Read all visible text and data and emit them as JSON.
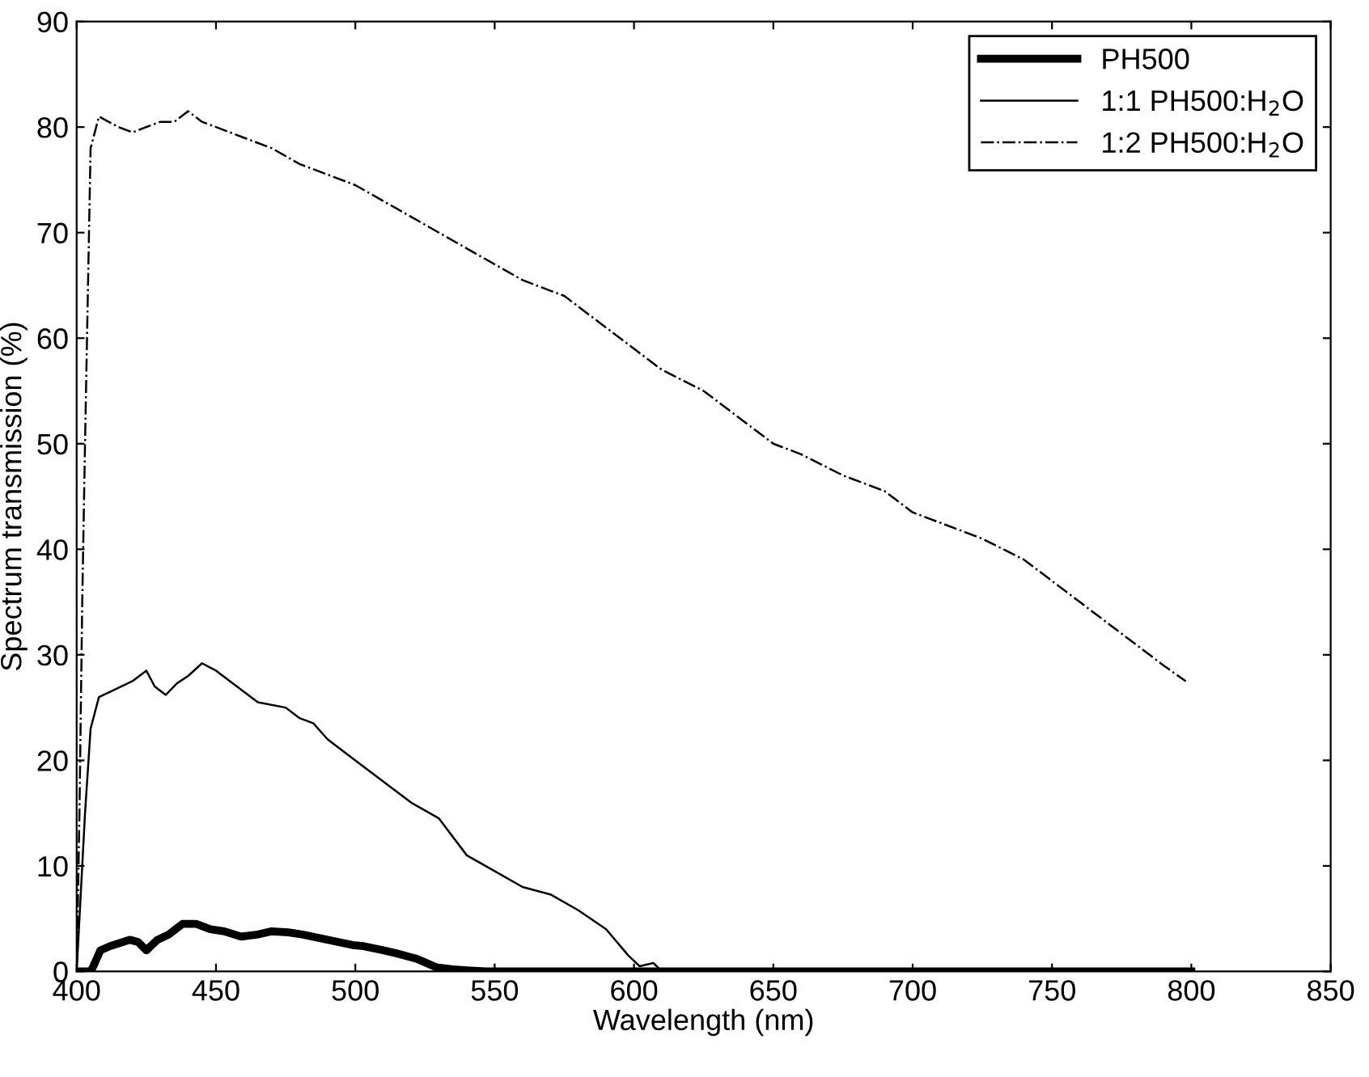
{
  "chart_data": {
    "type": "line",
    "xlabel": "Wavelength (nm)",
    "ylabel": "Spectrum transmission (%)",
    "xlim": [
      400,
      850
    ],
    "ylim": [
      0,
      90
    ],
    "xticks": [
      400,
      450,
      500,
      550,
      600,
      650,
      700,
      750,
      800,
      850
    ],
    "yticks": [
      0,
      10,
      20,
      30,
      40,
      50,
      60,
      70,
      80,
      90
    ],
    "grid": false,
    "legend": "top right",
    "series": [
      {
        "name": "PH500",
        "color": "#000000",
        "line_style": "solid",
        "x": [
          400,
          405,
          406,
          408.5,
          412,
          419,
          422,
          425,
          429,
          433,
          438,
          443,
          448,
          453,
          459,
          465,
          470,
          476,
          481,
          490,
          499,
          503,
          510,
          515,
          522,
          529,
          535,
          540,
          547,
          600,
          700,
          800
        ],
        "values": [
          0,
          0,
          0.5,
          2,
          2.4,
          3,
          2.8,
          2,
          3,
          3.5,
          4.5,
          4.5,
          4,
          3.8,
          3.3,
          3.5,
          3.8,
          3.7,
          3.5,
          3,
          2.5,
          2.4,
          2,
          1.7,
          1.2,
          0.4,
          0.2,
          0.1,
          0,
          0,
          0,
          0
        ]
      },
      {
        "name": "1:1 PH500:H$_{2}$O",
        "color": "#000000",
        "line_style": "solid",
        "x": [
          400,
          403,
          405,
          408,
          412,
          420,
          425,
          428,
          432,
          436,
          440,
          445,
          450,
          455,
          465,
          475,
          480,
          485,
          490,
          500,
          510,
          520,
          530,
          540,
          550,
          560,
          570,
          580,
          590,
          598,
          602,
          607,
          610,
          650,
          700,
          800
        ],
        "values": [
          0,
          15,
          23,
          26,
          26.5,
          27.5,
          28.5,
          27,
          26.2,
          27.3,
          28,
          29.2,
          28.5,
          27.5,
          25.5,
          25,
          24,
          23.5,
          22,
          20,
          18,
          16,
          14.5,
          11,
          9.5,
          8,
          7.3,
          5.8,
          4,
          1.5,
          0.5,
          0.8,
          0,
          0,
          0,
          0
        ]
      },
      {
        "name": "1:2 PH500:H$_{2}$O",
        "color": "#000000",
        "line_style": "dashdot",
        "x": [
          400,
          401,
          402,
          403,
          405,
          408,
          415,
          420,
          425,
          430,
          435,
          440,
          445,
          450,
          460,
          470,
          480,
          490,
          500,
          510,
          520,
          530,
          540,
          550,
          560,
          575,
          590,
          600,
          610,
          625,
          640,
          650,
          660,
          675,
          690,
          700,
          710,
          725,
          740,
          750,
          760,
          775,
          785,
          790,
          798
        ],
        "values": [
          0,
          15,
          35,
          50,
          78,
          81,
          80,
          79.5,
          80,
          80.5,
          80.5,
          81.5,
          80.5,
          80,
          79,
          78,
          76.5,
          75.5,
          74.5,
          73,
          71.5,
          70,
          68.5,
          67,
          65.5,
          64,
          61,
          59,
          57,
          55,
          52,
          50,
          49,
          47,
          45.5,
          43.5,
          42.5,
          41,
          39,
          37,
          35,
          32,
          30,
          29,
          27.5
        ]
      }
    ]
  }
}
